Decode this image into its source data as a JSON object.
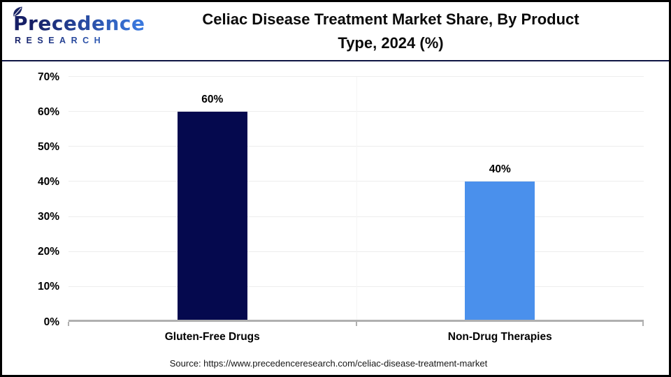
{
  "page": {
    "background": "#ffffff",
    "border_color": "#000000"
  },
  "header": {
    "logo": {
      "brand": "Precedence",
      "subtitle": "RESEARCH",
      "brand_color_dark": "#161f66",
      "brand_color_light": "#3a78dd"
    },
    "title_line1": "Celiac Disease Treatment Market Share, By Product",
    "title_line2": "Type, 2024 (%)",
    "divider_color": "#0e1443"
  },
  "chart_data": {
    "type": "bar",
    "title": "Celiac Disease Treatment Market Share, By Product Type, 2024 (%)",
    "categories": [
      "Gluten-Free Drugs",
      "Non-Drug Therapies"
    ],
    "values": [
      60,
      40
    ],
    "value_labels": [
      "60%",
      "40%"
    ],
    "series_colors": [
      "#05094e",
      "#4a90ec"
    ],
    "xlabel": "",
    "ylabel": "",
    "ylim": [
      0,
      70
    ],
    "ytick_step": 10,
    "ytick_labels": [
      "0%",
      "10%",
      "20%",
      "30%",
      "40%",
      "50%",
      "60%",
      "70%"
    ],
    "grid": true,
    "gridline_color": "#ededed",
    "axis_line_color": "#b0b0b0",
    "legend_position": "none"
  },
  "footer": {
    "source": "Source: https://www.precedenceresearch.com/celiac-disease-treatment-market"
  }
}
